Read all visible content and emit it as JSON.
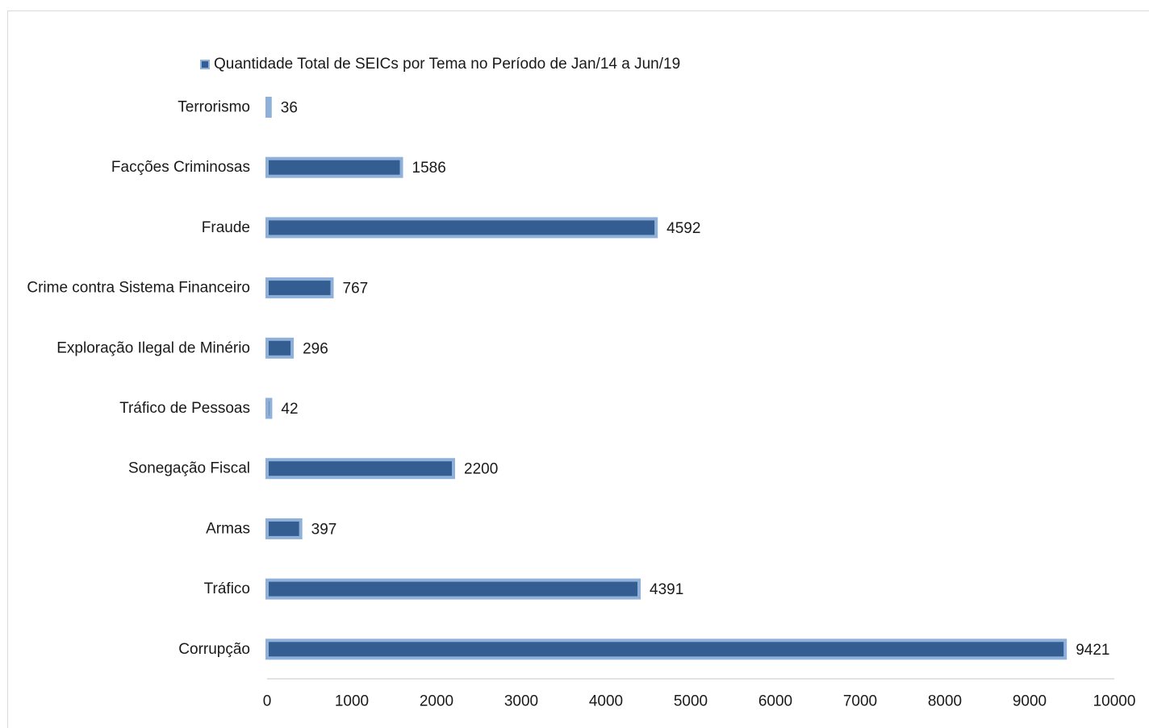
{
  "chart_data": {
    "type": "bar",
    "orientation": "horizontal",
    "categories": [
      "Terrorismo",
      "Facções Criminosas",
      "Fraude",
      "Crime contra Sistema Financeiro",
      "Exploração Ilegal de Minério",
      "Tráfico de Pessoas",
      "Sonegação Fiscal",
      "Armas",
      "Tráfico",
      "Corrupção"
    ],
    "series": [
      {
        "name": "Quantidade Total de SEICs por Tema no Período de Jan/14 a Jun/19",
        "values": [
          36,
          1586,
          4592,
          767,
          296,
          42,
          2200,
          397,
          4391,
          9421
        ]
      }
    ],
    "xlim": [
      0,
      10000
    ],
    "x_ticks": [
      "0",
      "1000",
      "2000",
      "3000",
      "4000",
      "5000",
      "6000",
      "7000",
      "8000",
      "9000",
      "10000"
    ],
    "grid": false,
    "legend_position": "top",
    "data_labels": true,
    "colors": {
      "bar_fill": "#345e92",
      "bar_border": "#8fb1d9",
      "axis": "#d9d9d9"
    }
  }
}
